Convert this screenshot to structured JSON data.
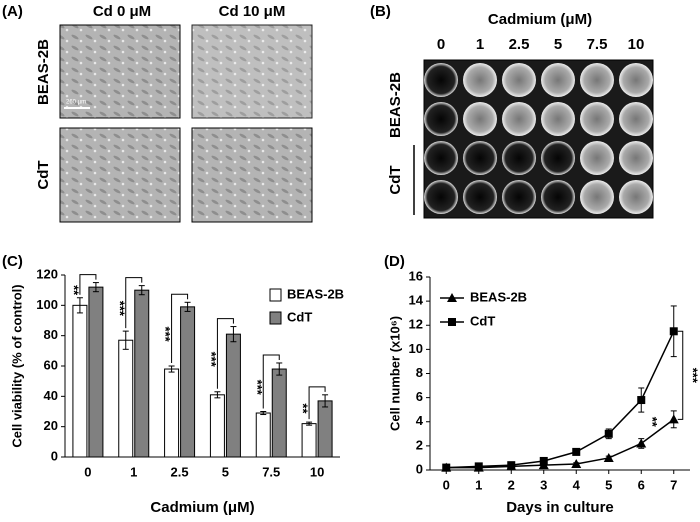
{
  "panel_a": {
    "label": "(A)",
    "columns": [
      "Cd 0 μM",
      "Cd 10 μM"
    ],
    "rows": [
      "BEAS-2B",
      "CdT"
    ],
    "scale_bar": "260 µm"
  },
  "panel_b": {
    "label": "(B)",
    "title": "Cadmium (μM)",
    "columns": [
      "0",
      "1",
      "2.5",
      "5",
      "7.5",
      "10"
    ],
    "rows": [
      "BEAS-2B",
      "CdT"
    ]
  },
  "chart_data": [
    {
      "type": "bar",
      "panel": "(C)",
      "y_label": "Cell viability (% of control)",
      "x_label": "Cadmium (μM)",
      "categories": [
        "0",
        "1",
        "2.5",
        "5",
        "7.5",
        "10"
      ],
      "series": [
        {
          "name": "BEAS-2B",
          "color": "#ffffff",
          "values": [
            100,
            77,
            58,
            41,
            29,
            22
          ],
          "errors": [
            5,
            6,
            2,
            2,
            1,
            1
          ]
        },
        {
          "name": "CdT",
          "color": "#808080",
          "values": [
            112,
            110,
            99,
            81,
            58,
            37
          ],
          "errors": [
            3,
            3,
            3,
            5,
            4,
            4
          ]
        }
      ],
      "annotations": [
        "**",
        "***",
        "***",
        "***",
        "***",
        "**"
      ],
      "ylim": [
        0,
        120
      ],
      "yticks": [
        0,
        20,
        40,
        60,
        80,
        100,
        120
      ],
      "legend": "upper right"
    },
    {
      "type": "line",
      "panel": "(D)",
      "y_label": "Cell number (x10⁶)",
      "x_label": "Days in culture",
      "x": [
        0,
        1,
        2,
        3,
        4,
        5,
        6,
        7
      ],
      "series": [
        {
          "name": "BEAS-2B",
          "color": "#000000",
          "marker": "triangle",
          "values": [
            0.2,
            0.2,
            0.3,
            0.4,
            0.5,
            1.0,
            2.2,
            4.2
          ],
          "errors": [
            0.05,
            0.05,
            0.05,
            0.05,
            0.1,
            0.15,
            0.4,
            0.7
          ]
        },
        {
          "name": "CdT",
          "color": "#000000",
          "marker": "square",
          "values": [
            0.2,
            0.3,
            0.4,
            0.75,
            1.5,
            3.0,
            5.8,
            11.5
          ],
          "errors": [
            0.05,
            0.05,
            0.05,
            0.1,
            0.15,
            0.4,
            1.0,
            2.1
          ]
        }
      ],
      "annotations": [
        {
          "text": "**",
          "x": 6
        },
        {
          "text": "***",
          "x": 7
        }
      ],
      "xlim": [
        -0.5,
        7.5
      ],
      "xticks": [
        0,
        1,
        2,
        3,
        4,
        5,
        6,
        7
      ],
      "ylim": [
        0,
        16
      ],
      "yticks": [
        0,
        2,
        4,
        6,
        8,
        10,
        12,
        14,
        16
      ],
      "legend": "upper left"
    }
  ]
}
